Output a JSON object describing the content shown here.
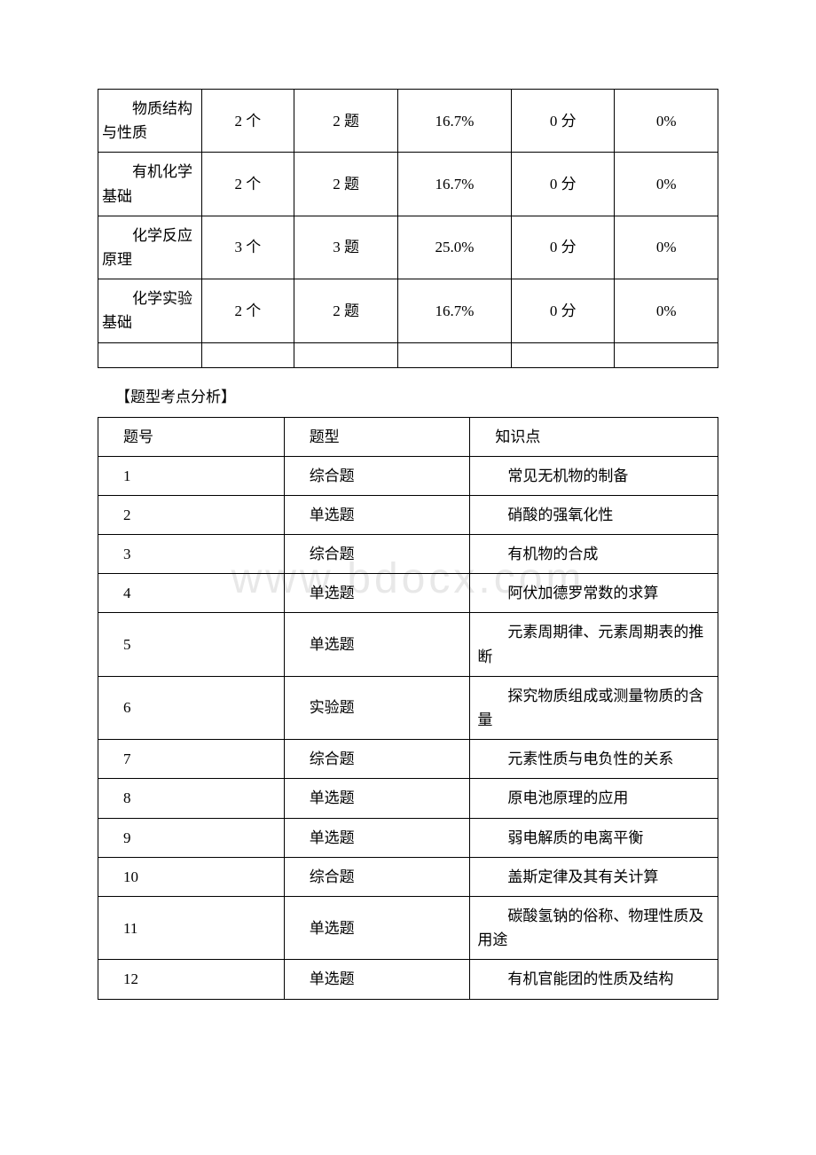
{
  "table1": {
    "rows": [
      {
        "topic": "物质结构与性质",
        "count": "2 个",
        "questions": "2 题",
        "pct": "16.7%",
        "score": "0 分",
        "scorePct": "0%"
      },
      {
        "topic": "有机化学基础",
        "count": "2 个",
        "questions": "2 题",
        "pct": "16.7%",
        "score": "0 分",
        "scorePct": "0%"
      },
      {
        "topic": "化学反应原理",
        "count": "3 个",
        "questions": "3 题",
        "pct": "25.0%",
        "score": "0 分",
        "scorePct": "0%"
      },
      {
        "topic": "化学实验基础",
        "count": "2 个",
        "questions": "2 题",
        "pct": "16.7%",
        "score": "0 分",
        "scorePct": "0%"
      }
    ],
    "styling": {
      "border_color": "#000000",
      "font_size": 17,
      "background_color": "#ffffff",
      "columns": 6
    }
  },
  "sectionTitle": "【题型考点分析】",
  "table2": {
    "headers": {
      "c1": "题号",
      "c2": "题型",
      "c3": "知识点"
    },
    "rows": [
      {
        "num": "1",
        "type": "综合题",
        "point": "常见无机物的制备"
      },
      {
        "num": "2",
        "type": "单选题",
        "point": "硝酸的强氧化性"
      },
      {
        "num": "3",
        "type": "综合题",
        "point": "有机物的合成"
      },
      {
        "num": "4",
        "type": "单选题",
        "point": "阿伏加德罗常数的求算"
      },
      {
        "num": "5",
        "type": "单选题",
        "point": "元素周期律、元素周期表的推断"
      },
      {
        "num": "6",
        "type": "实验题",
        "point": "探究物质组成或测量物质的含量"
      },
      {
        "num": "7",
        "type": "综合题",
        "point": "元素性质与电负性的关系"
      },
      {
        "num": "8",
        "type": "单选题",
        "point": "原电池原理的应用"
      },
      {
        "num": "9",
        "type": "单选题",
        "point": "弱电解质的电离平衡"
      },
      {
        "num": "10",
        "type": "综合题",
        "point": "盖斯定律及其有关计算"
      },
      {
        "num": "11",
        "type": "单选题",
        "point": "碳酸氢钠的俗称、物理性质及用途"
      },
      {
        "num": "12",
        "type": "单选题",
        "point": "有机官能团的性质及结构"
      }
    ],
    "styling": {
      "border_color": "#000000",
      "font_size": 17,
      "background_color": "#ffffff",
      "columns": 3
    }
  },
  "watermark": "www.bdocx.com",
  "colors": {
    "text": "#000000",
    "border": "#000000",
    "background": "#ffffff",
    "watermark": "#e8e8e8"
  }
}
